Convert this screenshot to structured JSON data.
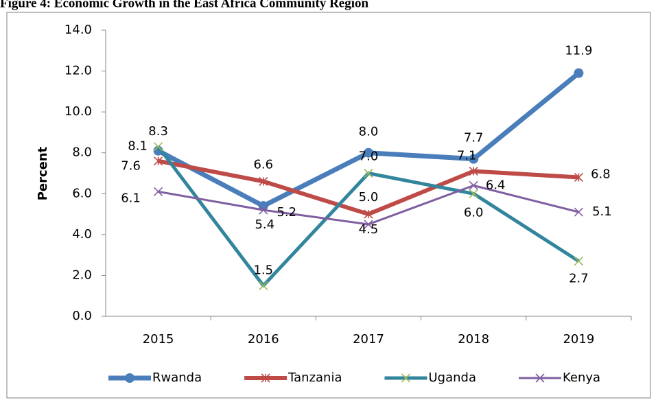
{
  "chart_data": {
    "type": "line",
    "title": "Figure 4: Economic Growth in the East Africa Community Region",
    "y_label": "Percent",
    "categories": [
      "2015",
      "2016",
      "2017",
      "2018",
      "2019"
    ],
    "series": [
      {
        "name": "Rwanda",
        "color": "#4a7ebb",
        "marker": "circle",
        "values": [
          8.1,
          5.4,
          8,
          7.7,
          11.9
        ],
        "value_labels": [
          "8.1",
          "5.4",
          "8.0",
          "7.7",
          "11.9"
        ]
      },
      {
        "name": "Tanzania",
        "color": "#be4b48",
        "marker": "star",
        "values": [
          7.6,
          6.6,
          5,
          7.1,
          6.8
        ],
        "value_labels": [
          "7.6",
          "6.6",
          "5.0",
          "7.1",
          "6.8"
        ]
      },
      {
        "name": "Uganda",
        "color": "#31859c",
        "marker": "x",
        "values": [
          8.3,
          1.5,
          7,
          6,
          2.7
        ],
        "value_labels": [
          "8.3",
          "1.5",
          "7.0",
          "6.0",
          "2.7"
        ]
      },
      {
        "name": "Kenya",
        "color": "#7f5fa0",
        "marker": "x",
        "values": [
          6.1,
          5.2,
          4.5,
          6.4,
          5.1
        ],
        "value_labels": [
          "6.1",
          "5.2",
          "4.5",
          "6.4",
          "5.1"
        ]
      }
    ],
    "ylim": [
      0,
      14
    ],
    "yticks": [
      {
        "value": 0,
        "label": "0.0"
      },
      {
        "value": 2,
        "label": "2.0"
      },
      {
        "value": 4,
        "label": "4.0"
      },
      {
        "value": 6,
        "label": "6.0"
      },
      {
        "value": 8,
        "label": "8.0"
      },
      {
        "value": 10,
        "label": "10.0"
      },
      {
        "value": 12,
        "label": "12.0"
      },
      {
        "value": 14,
        "label": "14.0"
      }
    ],
    "grid": false,
    "legend": "bottom"
  }
}
